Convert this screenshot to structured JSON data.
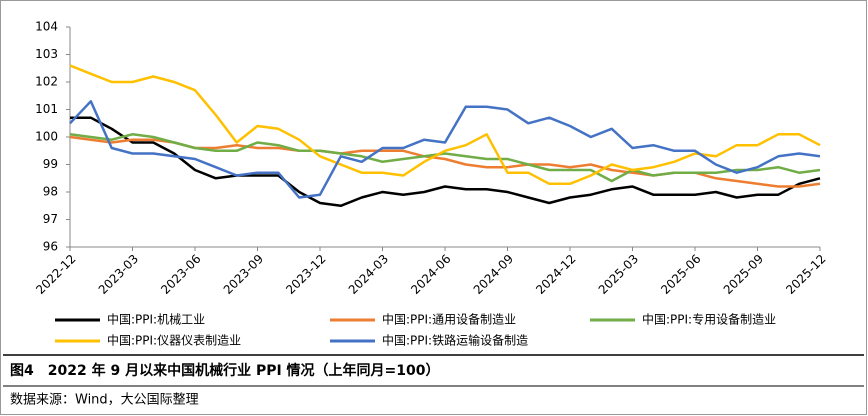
{
  "chart_data": {
    "type": "line",
    "categories": [
      "2022-12",
      null,
      null,
      "2023-03",
      null,
      null,
      "2023-06",
      null,
      null,
      "2023-09",
      null,
      null,
      "2023-12",
      null,
      null,
      "2024-03",
      null,
      null,
      "2024-06",
      null,
      null,
      "2024-09",
      null,
      null,
      "2024-12",
      null,
      null,
      "2025-03",
      null,
      null,
      "2025-06",
      null,
      null,
      "2025-09",
      null,
      null,
      "2025-12"
    ],
    "series": [
      {
        "name": "中国:PPI:机械工业",
        "color": "#000000",
        "values": [
          100.7,
          100.7,
          100.3,
          99.8,
          99.8,
          99.4,
          98.8,
          98.5,
          98.6,
          98.6,
          98.6,
          98.0,
          97.6,
          97.5,
          97.8,
          98.0,
          97.9,
          98.0,
          98.2,
          98.1,
          98.1,
          98.0,
          97.8,
          97.6,
          97.8,
          97.9,
          98.1,
          98.2,
          97.9,
          97.9,
          97.9,
          98.0,
          97.8,
          97.9,
          97.9,
          98.3,
          98.5
        ]
      },
      {
        "name": "中国:PPI:通用设备制造业",
        "color": "#ed7d31",
        "values": [
          100.0,
          99.9,
          99.8,
          99.9,
          99.9,
          99.8,
          99.6,
          99.6,
          99.7,
          99.6,
          99.6,
          99.5,
          99.5,
          99.4,
          99.5,
          99.5,
          99.5,
          99.3,
          99.2,
          99.0,
          98.9,
          98.9,
          99.0,
          99.0,
          98.9,
          99.0,
          98.8,
          98.7,
          98.6,
          98.7,
          98.7,
          98.5,
          98.4,
          98.3,
          98.2,
          98.2,
          98.3
        ]
      },
      {
        "name": "中国:PPI:专用设备制造业",
        "color": "#70ad47",
        "values": [
          100.1,
          100.0,
          99.9,
          100.1,
          100.0,
          99.8,
          99.6,
          99.5,
          99.5,
          99.8,
          99.7,
          99.5,
          99.5,
          99.4,
          99.3,
          99.1,
          99.2,
          99.3,
          99.4,
          99.3,
          99.2,
          99.2,
          99.0,
          98.8,
          98.8,
          98.8,
          98.4,
          98.8,
          98.6,
          98.7,
          98.7,
          98.7,
          98.8,
          98.8,
          98.9,
          98.7,
          98.8
        ]
      },
      {
        "name": "中国:PPI:仪器仪表制造业",
        "color": "#ffc000",
        "values": [
          102.6,
          102.3,
          102.0,
          102.0,
          102.2,
          102.0,
          101.7,
          100.8,
          99.8,
          100.4,
          100.3,
          99.9,
          99.3,
          99.0,
          98.7,
          98.7,
          98.6,
          99.1,
          99.5,
          99.7,
          100.1,
          98.7,
          98.7,
          98.3,
          98.3,
          98.6,
          99.0,
          98.8,
          98.9,
          99.1,
          99.4,
          99.3,
          99.7,
          99.7,
          100.1,
          100.1,
          99.7
        ]
      },
      {
        "name": "中国:PPI:铁路运输设备制造",
        "color": "#4472c4",
        "values": [
          100.5,
          101.3,
          99.6,
          99.4,
          99.4,
          99.3,
          99.2,
          98.9,
          98.6,
          98.7,
          98.7,
          97.8,
          97.9,
          99.3,
          99.1,
          99.6,
          99.6,
          99.9,
          99.8,
          101.1,
          101.1,
          101.0,
          100.5,
          100.7,
          100.4,
          100.0,
          100.3,
          99.6,
          99.7,
          99.5,
          99.5,
          99.0,
          98.7,
          98.9,
          99.3,
          99.4,
          99.3
        ]
      }
    ],
    "ylim": [
      96,
      104
    ],
    "yticks": [
      96,
      97,
      98,
      99,
      100,
      101,
      102,
      103,
      104
    ],
    "grid": false
  },
  "caption": "图4　2022 年 9 月以来中国机械行业 PPI 情况（上年同月=100）",
  "source": "数据来源：Wind，大公国际整理"
}
